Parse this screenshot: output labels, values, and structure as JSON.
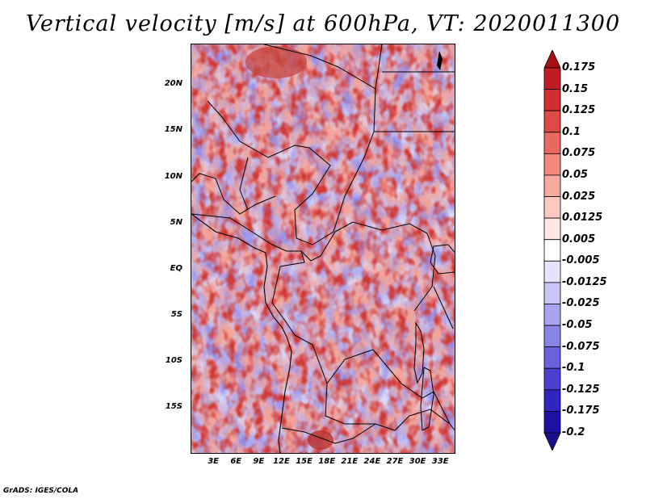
{
  "title": "Vertical velocity [m/s] at 600hPa, VT: 2020011300",
  "credit": "GrADS: IGES/COLA",
  "map": {
    "lat_labels": [
      "20N",
      "15N",
      "10N",
      "5N",
      "EQ",
      "5S",
      "10S",
      "15S"
    ],
    "lon_labels": [
      "3E",
      "6E",
      "9E",
      "12E",
      "15E",
      "18E",
      "21E",
      "24E",
      "27E",
      "30E",
      "33E"
    ],
    "lat_values": [
      20,
      15,
      10,
      5,
      0,
      -5,
      -10,
      -15
    ],
    "lon_values": [
      3,
      6,
      9,
      12,
      15,
      18,
      21,
      24,
      27,
      30,
      33
    ],
    "lon_range": [
      0,
      35
    ],
    "lat_range": [
      -20,
      24.5
    ]
  },
  "colorbar": {
    "labels": [
      "0.175",
      "0.15",
      "0.125",
      "0.1",
      "0.075",
      "0.05",
      "0.025",
      "0.0125",
      "0.005",
      "-0.005",
      "-0.0125",
      "-0.025",
      "-0.05",
      "-0.075",
      "-0.1",
      "-0.125",
      "-0.175",
      "-0.2"
    ],
    "colors": [
      "#a50f15",
      "#c01e24",
      "#d42f2f",
      "#e04a44",
      "#ea6a61",
      "#f28a80",
      "#f7aaa0",
      "#fbc9c0",
      "#fde8e4",
      "#ffffff",
      "#e6e4fb",
      "#c9c6f6",
      "#a9a4ee",
      "#8a83e6",
      "#6a62dc",
      "#4a41d0",
      "#2f25bf",
      "#1c13a3",
      "#1a0f8c"
    ]
  }
}
